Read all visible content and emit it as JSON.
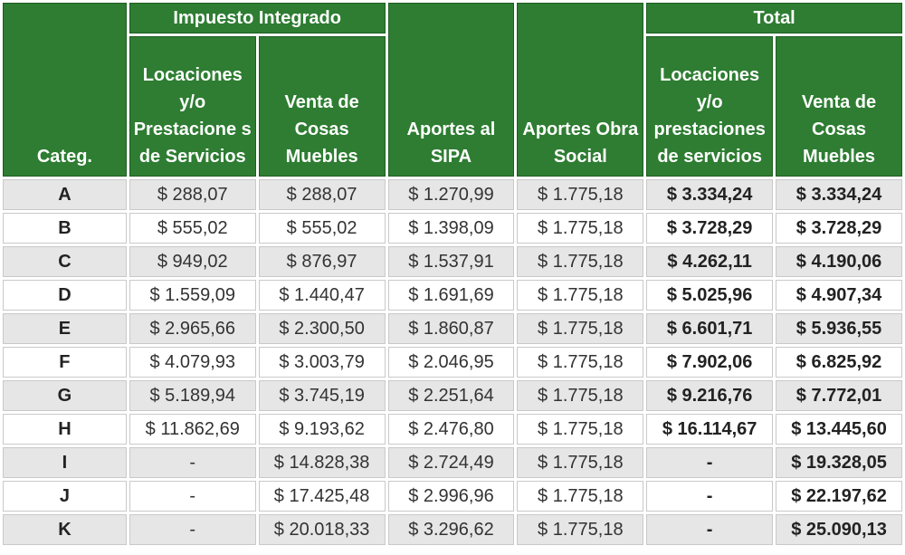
{
  "headers": {
    "categ": "Categ.",
    "impuesto_integrado": "Impuesto Integrado",
    "impuesto_locaciones": "Locaciones y/o Prestacione s de Servicios",
    "impuesto_venta": "Venta de Cosas Muebles",
    "aportes_sipa": "Aportes al SIPA",
    "aportes_obra_social": "Aportes Obra Social",
    "total": "Total",
    "total_locaciones": "Locaciones y/o prestaciones de servicios",
    "total_venta": "Venta de Cosas Muebles"
  },
  "rows": [
    {
      "cat": "A",
      "imp_loc": "$ 288,07",
      "imp_venta": "$ 288,07",
      "sipa": "$ 1.270,99",
      "obra_social": "$ 1.775,18",
      "total_loc": "$ 3.334,24",
      "total_venta": "$ 3.334,24"
    },
    {
      "cat": "B",
      "imp_loc": "$ 555,02",
      "imp_venta": "$ 555,02",
      "sipa": "$ 1.398,09",
      "obra_social": "$ 1.775,18",
      "total_loc": "$ 3.728,29",
      "total_venta": "$ 3.728,29"
    },
    {
      "cat": "C",
      "imp_loc": "$ 949,02",
      "imp_venta": "$ 876,97",
      "sipa": "$ 1.537,91",
      "obra_social": "$ 1.775,18",
      "total_loc": "$ 4.262,11",
      "total_venta": "$ 4.190,06"
    },
    {
      "cat": "D",
      "imp_loc": "$ 1.559,09",
      "imp_venta": "$ 1.440,47",
      "sipa": "$ 1.691,69",
      "obra_social": "$ 1.775,18",
      "total_loc": "$ 5.025,96",
      "total_venta": "$ 4.907,34"
    },
    {
      "cat": "E",
      "imp_loc": "$ 2.965,66",
      "imp_venta": "$ 2.300,50",
      "sipa": "$ 1.860,87",
      "obra_social": "$ 1.775,18",
      "total_loc": "$ 6.601,71",
      "total_venta": "$ 5.936,55"
    },
    {
      "cat": "F",
      "imp_loc": "$ 4.079,93",
      "imp_venta": "$ 3.003,79",
      "sipa": "$ 2.046,95",
      "obra_social": "$ 1.775,18",
      "total_loc": "$ 7.902,06",
      "total_venta": "$ 6.825,92"
    },
    {
      "cat": "G",
      "imp_loc": "$ 5.189,94",
      "imp_venta": "$ 3.745,19",
      "sipa": "$ 2.251,64",
      "obra_social": "$ 1.775,18",
      "total_loc": "$ 9.216,76",
      "total_venta": "$ 7.772,01"
    },
    {
      "cat": "H",
      "imp_loc": "$ 11.862,69",
      "imp_venta": "$ 9.193,62",
      "sipa": "$ 2.476,80",
      "obra_social": "$ 1.775,18",
      "total_loc": "$ 16.114,67",
      "total_venta": "$ 13.445,60"
    },
    {
      "cat": "I",
      "imp_loc": "-",
      "imp_venta": "$ 14.828,38",
      "sipa": "$ 2.724,49",
      "obra_social": "$ 1.775,18",
      "total_loc": "-",
      "total_venta": "$ 19.328,05"
    },
    {
      "cat": "J",
      "imp_loc": "-",
      "imp_venta": "$ 17.425,48",
      "sipa": "$ 2.996,96",
      "obra_social": "$ 1.775,18",
      "total_loc": "-",
      "total_venta": "$ 22.197,62"
    },
    {
      "cat": "K",
      "imp_loc": "-",
      "imp_venta": "$ 20.018,33",
      "sipa": "$ 3.296,62",
      "obra_social": "$ 1.775,18",
      "total_loc": "-",
      "total_venta": "$ 25.090,13"
    }
  ],
  "colors": {
    "header_bg": "#2e7d32",
    "header_text": "#ffffff",
    "row_alt_bg": "#e6e6e6",
    "row_bg": "#ffffff"
  }
}
